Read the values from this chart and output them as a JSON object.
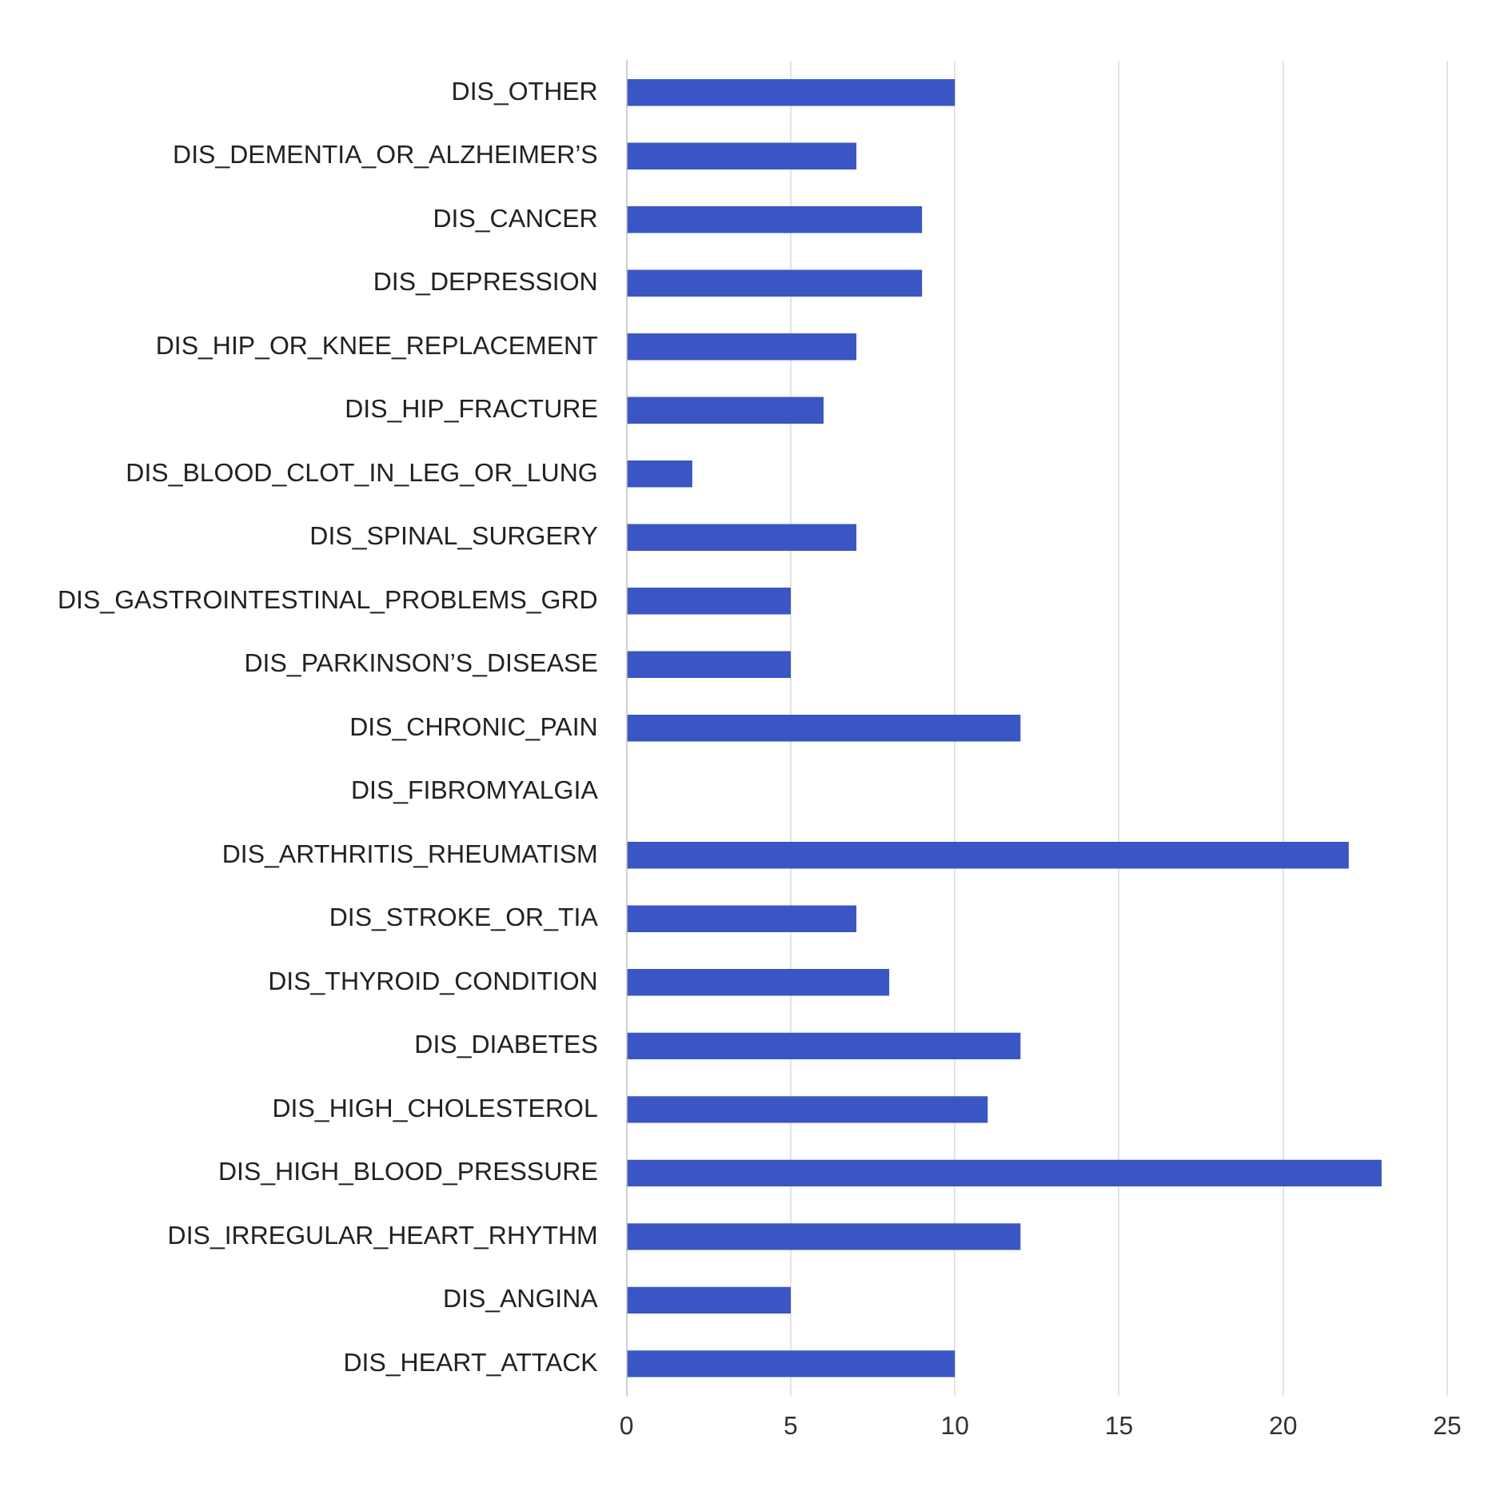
{
  "chart_data": {
    "type": "bar",
    "orientation": "horizontal",
    "categories": [
      "DIS_OTHER",
      "DIS_DEMENTIA_OR_ALZHEIMER’S",
      "DIS_CANCER",
      "DIS_DEPRESSION",
      "DIS_HIP_OR_KNEE_REPLACEMENT",
      "DIS_HIP_FRACTURE",
      "DIS_BLOOD_CLOT_IN_LEG_OR_LUNG",
      "DIS_SPINAL_SURGERY",
      "DIS_GASTROINTESTINAL_PROBLEMS_GRD",
      "DIS_PARKINSON’S_DISEASE",
      "DIS_CHRONIC_PAIN",
      "DIS_FIBROMYALGIA",
      "DIS_ARTHRITIS_RHEUMATISM",
      "DIS_STROKE_OR_TIA",
      "DIS_THYROID_CONDITION",
      "DIS_DIABETES",
      "DIS_HIGH_CHOLESTEROL",
      "DIS_HIGH_BLOOD_PRESSURE",
      "DIS_IRREGULAR_HEART_RHYTHM",
      "DIS_ANGINA",
      "DIS_HEART_ATTACK"
    ],
    "values": [
      10,
      7,
      9,
      9,
      7,
      6,
      2,
      7,
      5,
      5,
      12,
      0,
      22,
      7,
      8,
      12,
      11,
      23,
      12,
      5,
      10
    ],
    "color": "#3a56c4",
    "xlim": [
      0,
      25
    ],
    "xticks": [
      0,
      5,
      10,
      15,
      20,
      25
    ],
    "grid": "x",
    "legend": false
  }
}
